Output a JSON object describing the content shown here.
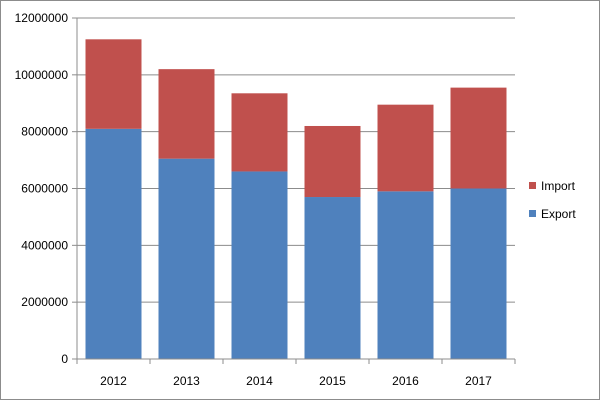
{
  "chart_data": {
    "type": "bar",
    "stacked": true,
    "categories": [
      "2012",
      "2013",
      "2014",
      "2015",
      "2016",
      "2017"
    ],
    "series": [
      {
        "name": "Export",
        "color": "#4f81bd",
        "values": [
          8100000,
          7050000,
          6600000,
          5700000,
          5900000,
          6000000
        ]
      },
      {
        "name": "Import",
        "color": "#c0504d",
        "values": [
          3150000,
          3150000,
          2750000,
          2500000,
          3050000,
          3550000
        ]
      }
    ],
    "y_ticks": [
      "0",
      "2000000",
      "4000000",
      "6000000",
      "8000000",
      "10000000",
      "12000000"
    ],
    "ylim": [
      0,
      12000000
    ],
    "grid": true,
    "legend_position": "right",
    "legend_order": [
      "Import",
      "Export"
    ],
    "title": "",
    "xlabel": "",
    "ylabel": ""
  }
}
